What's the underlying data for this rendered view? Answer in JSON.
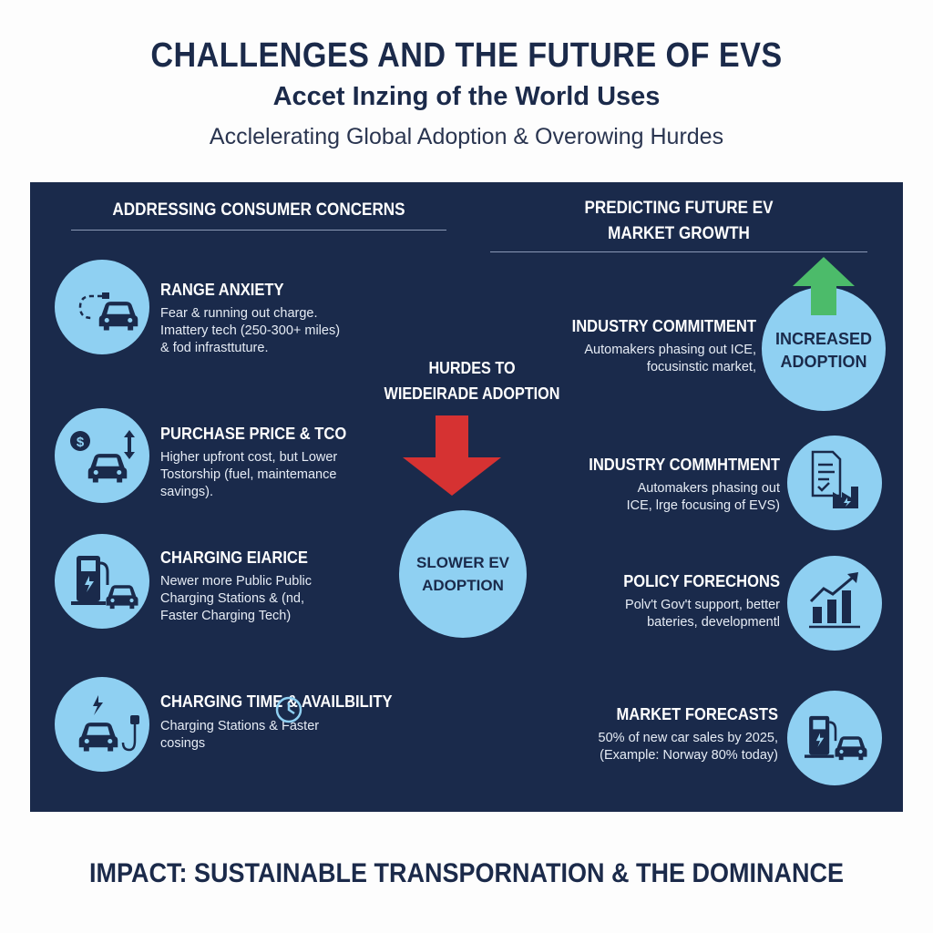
{
  "header": {
    "title": "CHALLENGES AND THE FUTURE OF EVS",
    "subtitle": "Accet Inzing of the World Uses",
    "tagline": "Acclelerating Global Adoption & Overowing Hurdes"
  },
  "left": {
    "heading": "ADDRESSING CONSUMER CONCERNS",
    "items": [
      {
        "title": "RANGE ANXIETY",
        "text": "Fear & running out charge. Imattery tech (250-300+ miles) & fod infrasttuture.",
        "icon": "car-range-icon"
      },
      {
        "title": "PURCHASE PRICE & TCO",
        "text": "Higher upfront cost, but Lower Tostorship (fuel, maintemance savings).",
        "icon": "car-price-icon"
      },
      {
        "title": "CHARGING EIARICE",
        "text": "Newer more Public Public Charging Stations & (nd, Faster Charging Tech)",
        "icon": "charging-station-icon"
      },
      {
        "title": "CHARGING TIME & AVAILBILITY",
        "text": "Charging Stations & Faster cosings",
        "icon": "car-plug-icon"
      }
    ]
  },
  "center": {
    "heading_line1": "HURDES TO",
    "heading_line2": "WIEDEIRADE ADOPTION",
    "circle_line1": "SLOWER EV",
    "circle_line2": "ADOPTION",
    "arrow_color": "#d63232"
  },
  "right": {
    "heading_line1": "PREDICTING FUTURE EV",
    "heading_line2": "MARKET GROWTH",
    "circle_line1": "INCREASED",
    "circle_line2": "ADOPTION",
    "arrow_color": "#4cbb6a",
    "items": [
      {
        "title": "INDUSTRY COMMITMENT",
        "text": "Automakers phasing out ICE, focusinstic market,"
      },
      {
        "title": "INDUSTRY COMMHTMENT",
        "text": "Automakers phasing out ICE, lrge focusing of EVS)",
        "icon": "document-factory-icon"
      },
      {
        "title": "POLICY FORECHONS",
        "text": "Polv't Gov't support, better bateries, developmentl",
        "icon": "bar-chart-growth-icon"
      },
      {
        "title": "MARKET FORECASTS",
        "text": "50% of new car sales by 2025, (Example: Norway 80% today)",
        "icon": "charging-station-icon"
      }
    ]
  },
  "footer": {
    "text": "IMPACT: SUSTAINABLE TRANSPORNATION & THE DOMINANCE"
  },
  "colors": {
    "panel": "#1a2a4b",
    "circle": "#8fd0f2",
    "title": "#1b2a4a"
  }
}
